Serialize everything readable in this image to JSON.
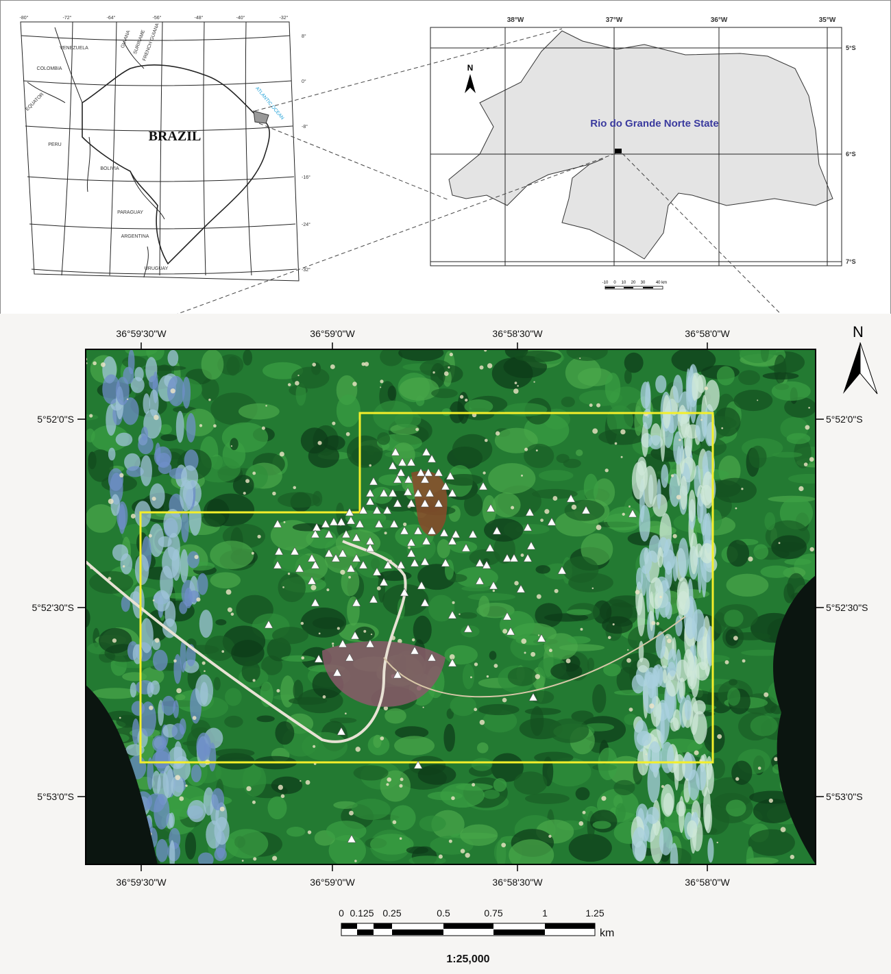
{
  "overview_map": {
    "lon_labels": [
      "-80°",
      "-72°",
      "-64°",
      "-56°",
      "-48°",
      "-40°",
      "-32°"
    ],
    "lat_labels": [
      "8°",
      "0°",
      "-8°",
      "-16°",
      "-24°",
      "-32°"
    ],
    "country_label": "BRAZIL",
    "place_labels": [
      "VENEZUELA",
      "COLOMBIA",
      "GUIANA",
      "SURINAME",
      "FRENCH GUIANA",
      "EQUATOR",
      "PERU",
      "BOLIVIA",
      "PARAGUAY",
      "ARGENTINA",
      "URUGUAY"
    ],
    "ocean_label": "ATLANTIC OCEAN"
  },
  "state_map": {
    "title": "Rio do Grande Norte State",
    "lon_labels": [
      "38°W",
      "37°W",
      "36°W",
      "35°W"
    ],
    "lat_labels": [
      "5°S",
      "6°S",
      "7°S"
    ],
    "north": "N",
    "scale_labels": [
      "-10",
      "0",
      "10",
      "20",
      "30",
      "40 km"
    ]
  },
  "site_map": {
    "lon_labels": [
      "36°59'30\"W",
      "36°59'0\"W",
      "36°58'30\"W",
      "36°58'0\"W"
    ],
    "lat_labels": [
      "5°52'0\"S",
      "5°52'30\"S",
      "5°53'0\"S"
    ],
    "north": "N",
    "scale_ticks": [
      "0",
      "0.125",
      "0.25",
      "0.5",
      "0.75",
      "1",
      "1.25"
    ],
    "scale_unit": "km",
    "scale_ratio": "1:25,000"
  }
}
